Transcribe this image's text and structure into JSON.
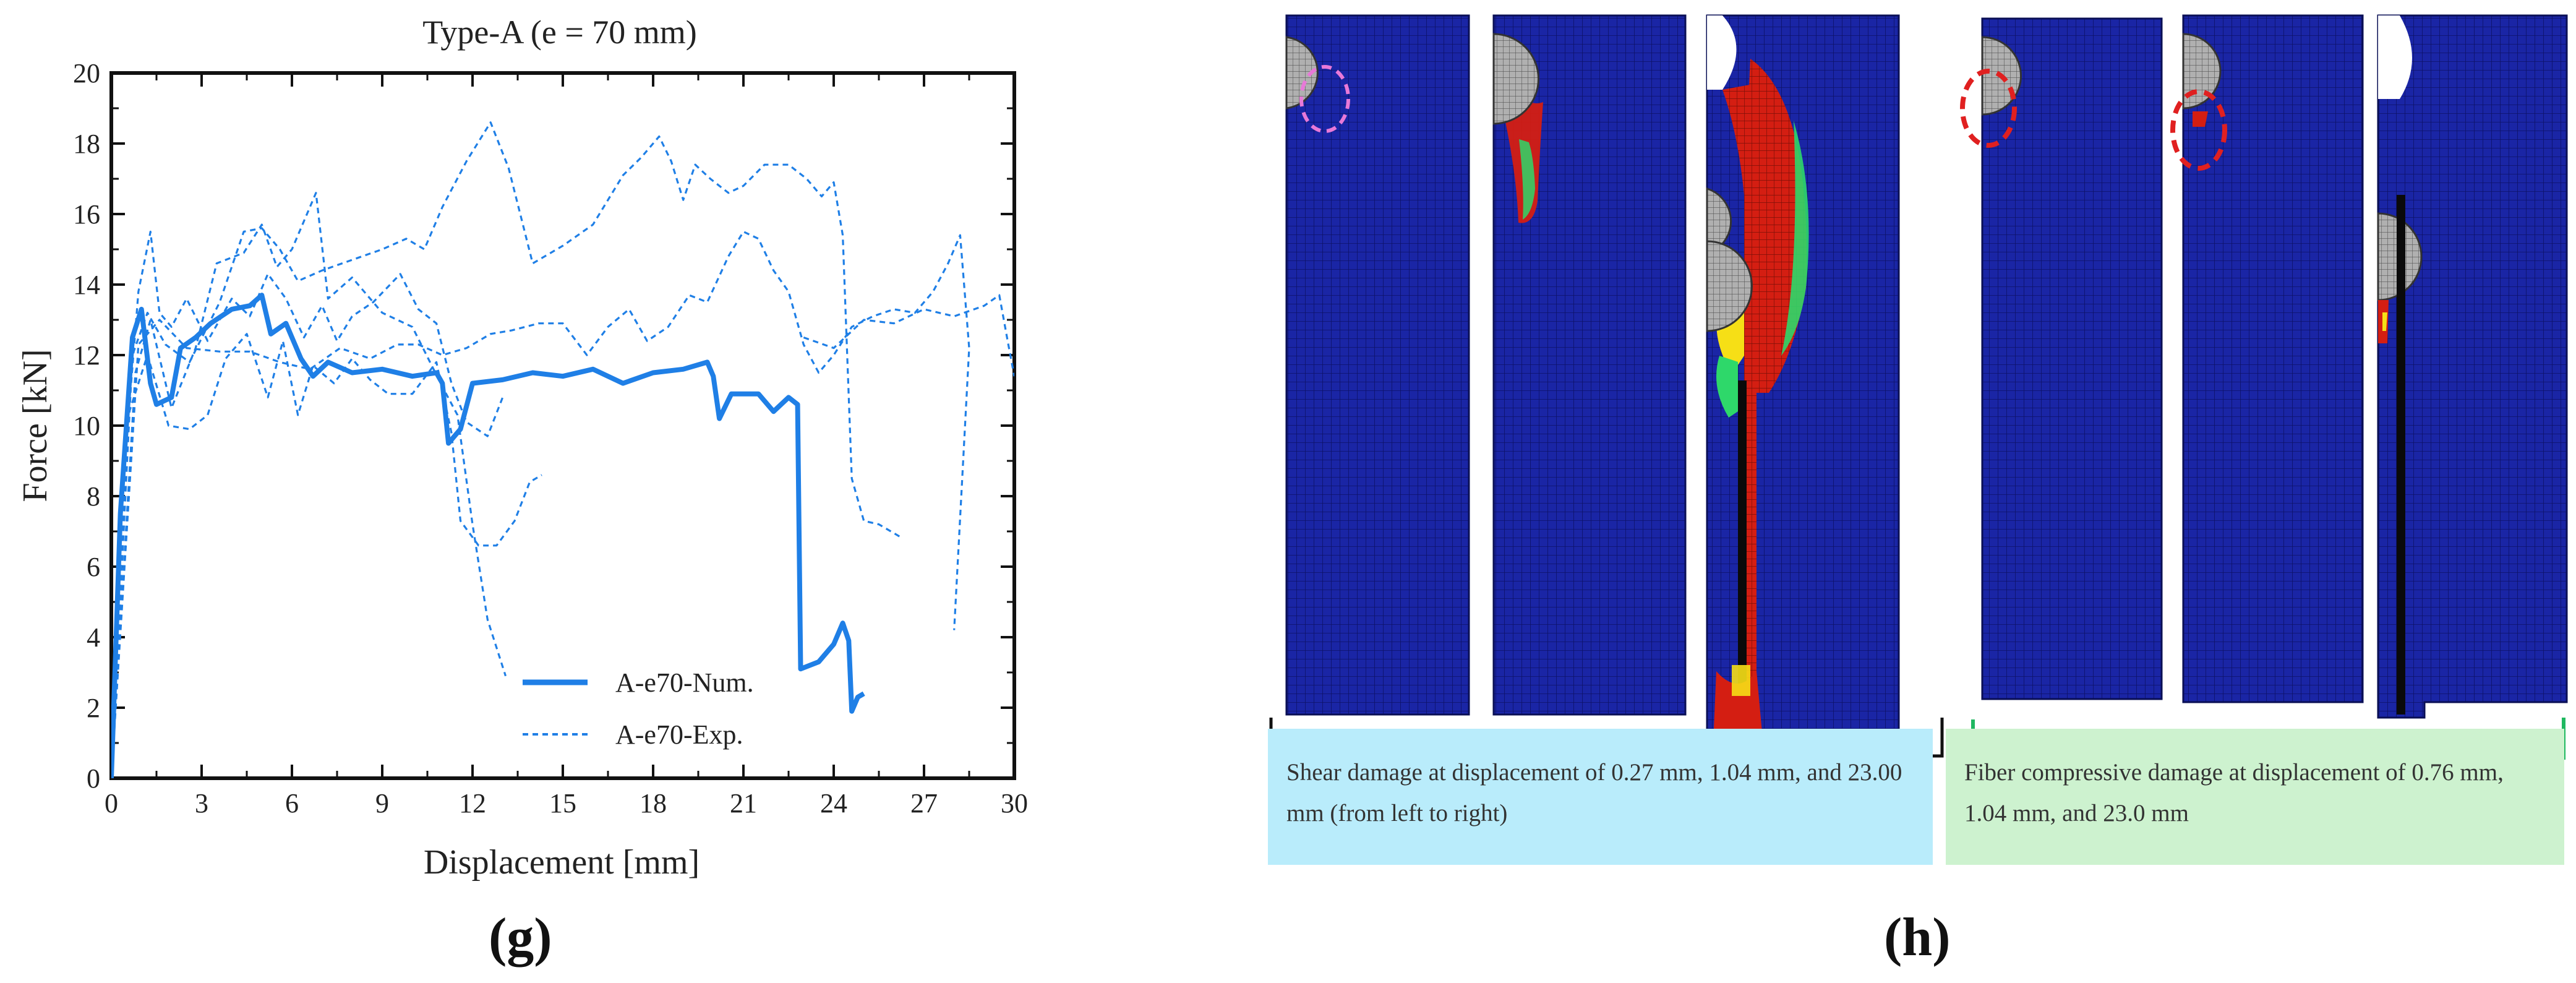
{
  "panel_labels": {
    "left": "(g)",
    "right": "(h)"
  },
  "chart_data": {
    "type": "line",
    "title": "Type-A (e = 70 mm)",
    "xlabel": "Displacement [mm]",
    "ylabel": "Force [kN]",
    "xlim": [
      0,
      30
    ],
    "ylim": [
      0,
      20
    ],
    "xticks": [
      0,
      3,
      6,
      9,
      12,
      15,
      18,
      21,
      24,
      27,
      30
    ],
    "yticks": [
      0,
      2,
      4,
      6,
      8,
      10,
      12,
      14,
      16,
      18,
      20
    ],
    "grid": false,
    "legend_position": "bottom-center",
    "series": [
      {
        "name": "A-e70-Num.",
        "style": "solid",
        "color": "#1f7fe6",
        "points": [
          [
            0,
            0
          ],
          [
            0.3,
            7.5
          ],
          [
            0.7,
            12.5
          ],
          [
            1.0,
            13.3
          ],
          [
            1.3,
            11.2
          ],
          [
            1.5,
            10.6
          ],
          [
            2.0,
            10.8
          ],
          [
            2.3,
            12.2
          ],
          [
            2.8,
            12.5
          ],
          [
            3.3,
            12.9
          ],
          [
            4.0,
            13.3
          ],
          [
            4.6,
            13.4
          ],
          [
            5.0,
            13.7
          ],
          [
            5.3,
            12.6
          ],
          [
            5.8,
            12.9
          ],
          [
            6.3,
            11.9
          ],
          [
            6.7,
            11.4
          ],
          [
            7.2,
            11.8
          ],
          [
            8.0,
            11.5
          ],
          [
            9.0,
            11.6
          ],
          [
            10.0,
            11.4
          ],
          [
            10.8,
            11.5
          ],
          [
            11.0,
            11.2
          ],
          [
            11.2,
            9.5
          ],
          [
            11.6,
            9.9
          ],
          [
            12.0,
            11.2
          ],
          [
            13.0,
            11.3
          ],
          [
            14.0,
            11.5
          ],
          [
            15.0,
            11.4
          ],
          [
            16.0,
            11.6
          ],
          [
            17.0,
            11.2
          ],
          [
            18.0,
            11.5
          ],
          [
            19.0,
            11.6
          ],
          [
            19.8,
            11.8
          ],
          [
            20.0,
            11.4
          ],
          [
            20.2,
            10.2
          ],
          [
            20.6,
            10.9
          ],
          [
            21.5,
            10.9
          ],
          [
            22.0,
            10.4
          ],
          [
            22.5,
            10.8
          ],
          [
            22.8,
            10.6
          ],
          [
            22.9,
            3.1
          ],
          [
            23.5,
            3.3
          ],
          [
            24.0,
            3.8
          ],
          [
            24.3,
            4.4
          ],
          [
            24.5,
            3.9
          ],
          [
            24.6,
            1.9
          ],
          [
            24.8,
            2.3
          ],
          [
            25.0,
            2.4
          ]
        ]
      },
      {
        "name": "A-e70-Exp.",
        "style": "dashed",
        "color": "#1f7fe6",
        "curves": [
          [
            [
              0,
              0
            ],
            [
              0.5,
              9.5
            ],
            [
              0.9,
              13.8
            ],
            [
              1.3,
              15.5
            ],
            [
              1.6,
              13.2
            ],
            [
              2.0,
              12.8
            ],
            [
              2.5,
              13.6
            ],
            [
              3.2,
              12.4
            ],
            [
              4.0,
              13.6
            ],
            [
              4.6,
              13.1
            ],
            [
              5.2,
              14.3
            ],
            [
              5.8,
              13.6
            ],
            [
              6.4,
              12.5
            ],
            [
              7.0,
              13.4
            ],
            [
              7.5,
              12.4
            ],
            [
              8.0,
              13.1
            ],
            [
              8.7,
              13.5
            ],
            [
              9.6,
              14.3
            ],
            [
              10.2,
              13.3
            ],
            [
              10.8,
              12.9
            ],
            [
              11.3,
              11.2
            ],
            [
              11.8,
              10.1
            ],
            [
              12.5,
              9.7
            ],
            [
              13.0,
              10.8
            ]
          ],
          [
            [
              0,
              0
            ],
            [
              0.8,
              11.5
            ],
            [
              1.3,
              13.0
            ],
            [
              2.0,
              10.5
            ],
            [
              2.8,
              12.2
            ],
            [
              3.5,
              14.6
            ],
            [
              4.4,
              14.9
            ],
            [
              5.0,
              15.7
            ],
            [
              5.5,
              14.5
            ],
            [
              6.0,
              15.0
            ],
            [
              6.8,
              16.6
            ],
            [
              7.2,
              13.6
            ],
            [
              8.0,
              14.2
            ],
            [
              9.0,
              13.2
            ],
            [
              10.0,
              12.8
            ],
            [
              11.0,
              11.1
            ],
            [
              11.5,
              10.3
            ],
            [
              12.0,
              7.2
            ],
            [
              12.5,
              4.5
            ],
            [
              13.1,
              2.9
            ]
          ],
          [
            [
              0,
              0
            ],
            [
              0.6,
              10.4
            ],
            [
              1.2,
              12.0
            ],
            [
              1.9,
              10.0
            ],
            [
              2.6,
              9.9
            ],
            [
              3.2,
              10.3
            ],
            [
              3.8,
              11.9
            ],
            [
              4.5,
              12.6
            ],
            [
              5.2,
              10.8
            ],
            [
              5.7,
              12.4
            ],
            [
              6.2,
              10.3
            ],
            [
              6.7,
              11.7
            ],
            [
              7.4,
              11.2
            ],
            [
              8.0,
              11.9
            ],
            [
              8.6,
              11.3
            ],
            [
              9.2,
              10.9
            ],
            [
              10.0,
              10.9
            ],
            [
              10.8,
              11.8
            ],
            [
              11.3,
              9.8
            ],
            [
              11.6,
              7.3
            ],
            [
              12.2,
              6.6
            ],
            [
              12.8,
              6.6
            ],
            [
              13.4,
              7.3
            ],
            [
              13.9,
              8.4
            ],
            [
              14.3,
              8.6
            ]
          ],
          [
            [
              0,
              0
            ],
            [
              0.7,
              12.0
            ],
            [
              1.2,
              13.2
            ],
            [
              1.8,
              12.3
            ],
            [
              2.6,
              11.8
            ],
            [
              3.6,
              13.5
            ],
            [
              4.4,
              15.5
            ],
            [
              5.0,
              15.6
            ],
            [
              5.6,
              15.0
            ],
            [
              6.2,
              14.1
            ],
            [
              7.0,
              14.4
            ],
            [
              8.0,
              14.7
            ],
            [
              9.0,
              15.0
            ],
            [
              9.8,
              15.3
            ],
            [
              10.4,
              15.0
            ],
            [
              11.0,
              16.2
            ],
            [
              11.8,
              17.5
            ],
            [
              12.6,
              18.6
            ],
            [
              13.2,
              17.3
            ],
            [
              14.0,
              14.6
            ],
            [
              15.0,
              15.1
            ],
            [
              16.0,
              15.7
            ],
            [
              17.0,
              17.1
            ],
            [
              17.6,
              17.6
            ],
            [
              18.2,
              18.2
            ],
            [
              18.6,
              17.5
            ],
            [
              19.0,
              16.4
            ],
            [
              19.4,
              17.4
            ],
            [
              19.9,
              17.0
            ],
            [
              20.5,
              16.6
            ],
            [
              21.0,
              16.8
            ],
            [
              21.7,
              17.4
            ],
            [
              22.5,
              17.4
            ],
            [
              23.1,
              17.0
            ],
            [
              23.6,
              16.5
            ],
            [
              24.0,
              16.9
            ],
            [
              24.3,
              15.4
            ],
            [
              24.6,
              8.5
            ],
            [
              25.0,
              7.3
            ],
            [
              25.5,
              7.2
            ],
            [
              26.3,
              6.8
            ]
          ],
          [
            [
              0,
              0
            ],
            [
              0.9,
              12.3
            ],
            [
              1.6,
              13.0
            ],
            [
              2.5,
              12.2
            ],
            [
              3.6,
              12.1
            ],
            [
              4.6,
              12.1
            ],
            [
              5.6,
              11.8
            ],
            [
              6.6,
              11.6
            ],
            [
              7.6,
              12.2
            ],
            [
              8.6,
              11.9
            ],
            [
              9.5,
              12.3
            ],
            [
              10.2,
              12.3
            ],
            [
              11.0,
              12.0
            ],
            [
              11.8,
              12.2
            ],
            [
              12.6,
              12.6
            ],
            [
              13.3,
              12.7
            ],
            [
              14.2,
              12.9
            ],
            [
              15.0,
              12.9
            ],
            [
              15.8,
              12.0
            ],
            [
              16.5,
              12.8
            ],
            [
              17.2,
              13.3
            ],
            [
              17.8,
              12.4
            ],
            [
              18.5,
              12.8
            ],
            [
              19.2,
              13.7
            ],
            [
              19.8,
              13.5
            ],
            [
              20.5,
              14.8
            ],
            [
              21.0,
              15.5
            ],
            [
              21.5,
              15.3
            ],
            [
              22.0,
              14.4
            ],
            [
              22.5,
              13.8
            ],
            [
              23.0,
              12.3
            ],
            [
              23.5,
              11.5
            ],
            [
              24.0,
              12.0
            ],
            [
              24.6,
              12.8
            ],
            [
              25.3,
              13.1
            ],
            [
              26.0,
              13.3
            ],
            [
              26.7,
              13.2
            ],
            [
              27.3,
              13.8
            ],
            [
              27.8,
              14.6
            ],
            [
              28.2,
              15.4
            ],
            [
              28.5,
              12.2
            ],
            [
              28.0,
              4.2
            ]
          ],
          [
            [
              23.0,
              12.5
            ],
            [
              24.0,
              12.2
            ],
            [
              25.0,
              13.0
            ],
            [
              26.0,
              12.9
            ],
            [
              27.0,
              13.3
            ],
            [
              28.0,
              13.1
            ],
            [
              29.0,
              13.4
            ],
            [
              29.5,
              13.7
            ],
            [
              29.8,
              12.3
            ],
            [
              30.0,
              11.4
            ]
          ]
        ]
      }
    ]
  },
  "fe_panel": {
    "captions": {
      "shear": "Shear damage at displacement of 0.27 mm, 1.04 mm, and 23.00 mm (from left to right)",
      "fiber": "Fiber compressive damage at displacement of 0.76 mm, 1.04 mm, and 23.0 mm"
    },
    "colors": {
      "mesh": "#1a25a5",
      "damage_high": "#d41e12",
      "damage_mid": "#f6df16",
      "damage_low": "#2ed86a",
      "pin": "#a8a8a8",
      "shear_bracket": "#111111",
      "fiber_bracket": "#1fb860",
      "highlight_pink": "#e879d8",
      "highlight_red": "#e02020"
    }
  }
}
